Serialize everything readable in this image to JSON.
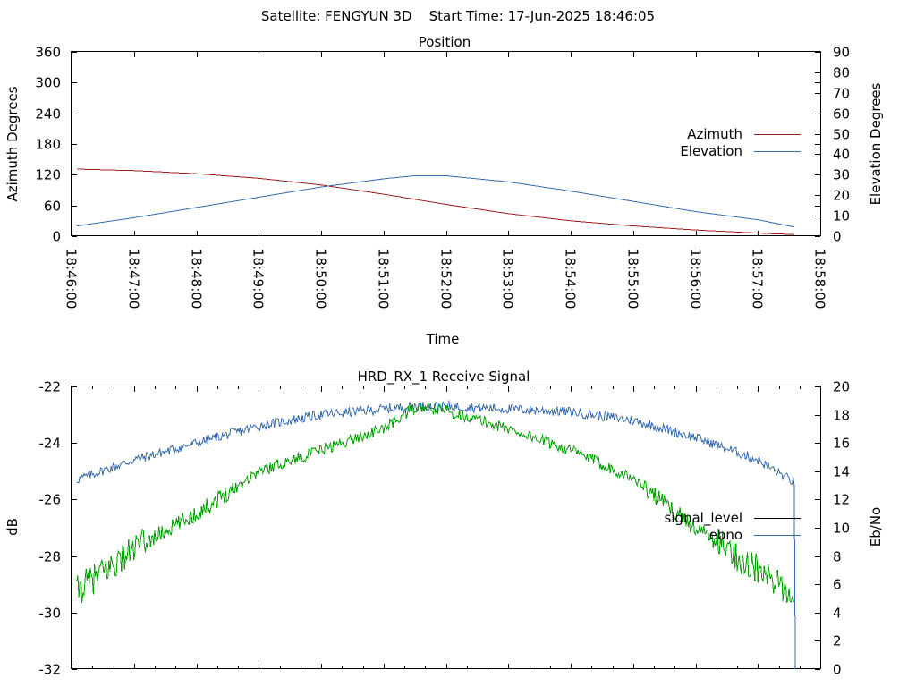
{
  "page_title": "Satellite: FENGYUN 3D    Start Time: 17-Jun-2025 18:46:05",
  "colors": {
    "azimuth": "#a02020",
    "elevation": "#3a6eb0",
    "signal_level": "#000000",
    "ebno_trace": "#00a000",
    "ebno_legend": "#3a6eb0",
    "signal_trace": "#3a6eb0"
  },
  "chart_data": [
    {
      "type": "line",
      "title": "Position",
      "xlabel": "Time",
      "ylabel": "Azimuth Degrees",
      "y2label": "Elevation Degrees",
      "legend_position": "right",
      "x_ticks": [
        "18:46:00",
        "18:47:00",
        "18:48:00",
        "18:49:00",
        "18:50:00",
        "18:51:00",
        "18:52:00",
        "18:53:00",
        "18:54:00",
        "18:55:00",
        "18:56:00",
        "18:57:00",
        "18:58:00"
      ],
      "xlim": [
        "18:46:00",
        "18:58:00"
      ],
      "ylim": [
        0,
        360
      ],
      "y_ticks": [
        "0",
        "60",
        "120",
        "180",
        "240",
        "300",
        "360"
      ],
      "y2lim": [
        0,
        90
      ],
      "y2_ticks": [
        "0",
        "10",
        "20",
        "30",
        "40",
        "50",
        "60",
        "70",
        "80",
        "90"
      ],
      "series": [
        {
          "name": "Azimuth",
          "axis": "left",
          "x": [
            "18:46:05",
            "18:47:00",
            "18:48:00",
            "18:49:00",
            "18:50:00",
            "18:51:00",
            "18:52:00",
            "18:53:00",
            "18:54:00",
            "18:55:00",
            "18:56:00",
            "18:57:00",
            "18:57:35"
          ],
          "values": [
            131,
            128,
            122,
            113,
            100,
            82,
            62,
            44,
            30,
            20,
            12,
            6,
            3
          ]
        },
        {
          "name": "Elevation",
          "axis": "right",
          "x": [
            "18:46:05",
            "18:47:00",
            "18:48:00",
            "18:49:00",
            "18:50:00",
            "18:51:00",
            "18:51:30",
            "18:52:00",
            "18:53:00",
            "18:54:00",
            "18:55:00",
            "18:56:00",
            "18:57:00",
            "18:57:35"
          ],
          "values": [
            5,
            9,
            14,
            19,
            24,
            28,
            29.5,
            29.5,
            26.5,
            22,
            17,
            12,
            8,
            4.5
          ]
        }
      ]
    },
    {
      "type": "line",
      "title": "HRD_RX_1 Receive Signal",
      "ylabel": "dB",
      "y2label": "Eb/No",
      "legend_position": "right",
      "xlim": [
        "18:46:00",
        "18:58:00"
      ],
      "ylim": [
        -32,
        -22
      ],
      "y_ticks": [
        "-32",
        "-30",
        "-28",
        "-26",
        "-24",
        "-22"
      ],
      "y2lim": [
        0,
        20
      ],
      "y2_ticks": [
        "0",
        "2",
        "4",
        "6",
        "8",
        "10",
        "12",
        "14",
        "16",
        "18",
        "20"
      ],
      "series": [
        {
          "name": "signal_level",
          "axis": "left",
          "x": [
            "18:46:05",
            "18:47:00",
            "18:48:00",
            "18:49:00",
            "18:50:00",
            "18:51:00",
            "18:51:30",
            "18:52:00",
            "18:53:00",
            "18:54:00",
            "18:55:00",
            "18:56:00",
            "18:57:00",
            "18:57:35"
          ],
          "values": [
            -25.3,
            -24.6,
            -24.0,
            -23.4,
            -23.0,
            -22.8,
            -22.7,
            -22.7,
            -22.8,
            -22.9,
            -23.2,
            -23.8,
            -24.6,
            -25.4
          ]
        },
        {
          "name": "ebno",
          "axis": "right",
          "x": [
            "18:46:05",
            "18:47:00",
            "18:48:00",
            "18:49:00",
            "18:50:00",
            "18:51:00",
            "18:51:30",
            "18:52:00",
            "18:53:00",
            "18:54:00",
            "18:55:00",
            "18:56:00",
            "18:57:00",
            "18:57:35"
          ],
          "values": [
            5.5,
            8.5,
            11,
            14,
            15.5,
            17,
            18.5,
            18.3,
            17.0,
            15.5,
            13.5,
            10,
            7,
            5
          ]
        }
      ]
    }
  ]
}
